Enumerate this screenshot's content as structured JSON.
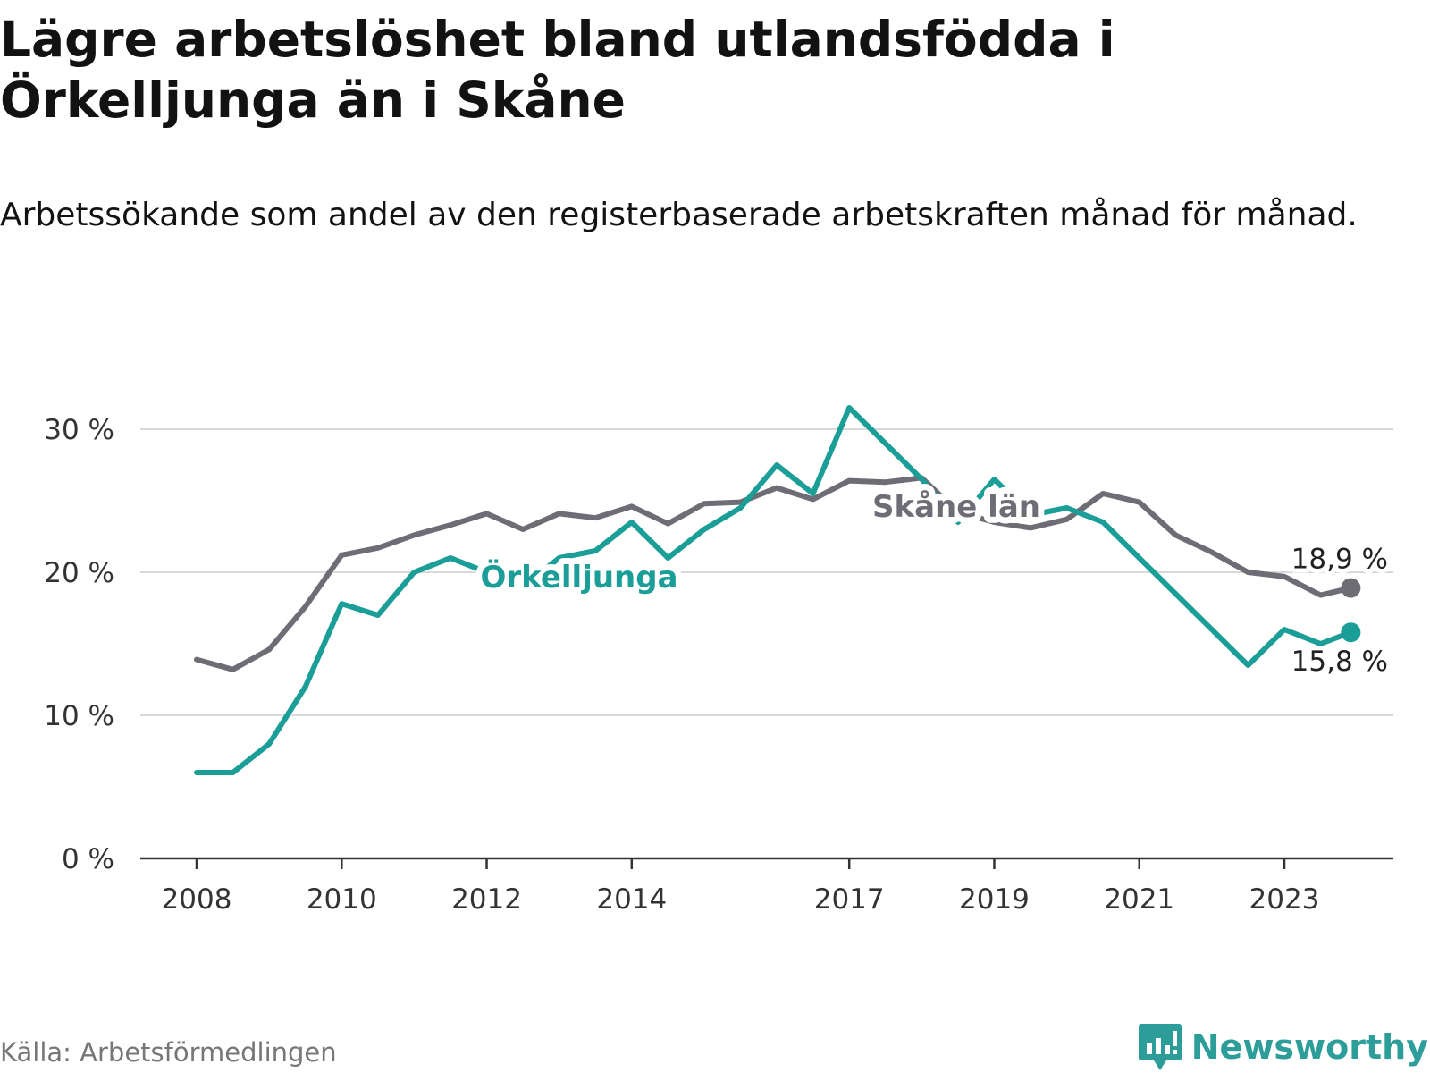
{
  "title": "Lägre arbetslöshet bland utlandsfödda i Örkelljunga än i Skåne",
  "subtitle": "Arbetssökande som andel av den registerbaserade arbetskraften månad för månad.",
  "source": "Källa: Arbetsförmedlingen",
  "brand": "Newsworthy",
  "colors": {
    "orkelljunga": "#1a9e97",
    "skane": "#6e6c75",
    "grid": "#d9d9d9",
    "axis": "#333333"
  },
  "chart_data": {
    "type": "line",
    "title": "Lägre arbetslöshet bland utlandsfödda i Örkelljunga än i Skåne",
    "subtitle": "Arbetssökande som andel av den registerbaserade arbetskraften månad för månad.",
    "xlabel": "",
    "ylabel": "",
    "ylim": [
      0,
      30
    ],
    "xlim": [
      "2007-06",
      "2024-12"
    ],
    "y_ticks": [
      0,
      10,
      20,
      30
    ],
    "y_tick_labels": [
      "0 %",
      "10 %",
      "20 %",
      "30 %"
    ],
    "x_ticks": [
      "2008-01",
      "2010-01",
      "2012-01",
      "2014-01",
      "2017-01",
      "2019-01",
      "2021-01",
      "2023-01"
    ],
    "x_tick_labels": [
      "2008",
      "2010",
      "2012",
      "2014",
      "2017",
      "2019",
      "2021",
      "2023"
    ],
    "grid": "horizontal",
    "legend": "inline labels",
    "series": [
      {
        "name": "Skåne län",
        "color": "#6e6c75",
        "end_label": "18,9 %",
        "x": [
          "2008-01",
          "2008-07",
          "2009-01",
          "2009-07",
          "2010-01",
          "2010-07",
          "2011-01",
          "2011-07",
          "2012-01",
          "2012-07",
          "2013-01",
          "2013-07",
          "2014-01",
          "2014-07",
          "2015-01",
          "2015-07",
          "2016-01",
          "2016-07",
          "2017-01",
          "2017-07",
          "2018-01",
          "2018-07",
          "2019-01",
          "2019-07",
          "2020-01",
          "2020-07",
          "2021-01",
          "2021-07",
          "2022-01",
          "2022-07",
          "2023-01",
          "2023-07",
          "2023-12"
        ],
        "values": [
          13.9,
          13.2,
          14.6,
          17.6,
          21.2,
          21.7,
          22.6,
          23.3,
          24.1,
          23.0,
          24.1,
          23.8,
          24.6,
          23.4,
          24.8,
          24.9,
          25.9,
          25.1,
          26.4,
          26.3,
          26.6,
          24.2,
          23.5,
          23.1,
          23.7,
          25.5,
          24.9,
          22.6,
          21.4,
          20.0,
          19.7,
          18.4,
          18.9
        ]
      },
      {
        "name": "Örkelljunga",
        "color": "#1a9e97",
        "end_label": "15,8 %",
        "x": [
          "2008-01",
          "2008-07",
          "2009-01",
          "2009-07",
          "2010-01",
          "2010-07",
          "2011-01",
          "2011-07",
          "2012-01",
          "2012-07",
          "2013-01",
          "2013-07",
          "2014-01",
          "2014-07",
          "2015-01",
          "2015-07",
          "2016-01",
          "2016-07",
          "2017-01",
          "2017-07",
          "2018-01",
          "2018-07",
          "2019-01",
          "2019-07",
          "2020-01",
          "2020-07",
          "2021-01",
          "2021-07",
          "2022-01",
          "2022-07",
          "2023-01",
          "2023-07",
          "2023-12"
        ],
        "values": [
          6.0,
          6.0,
          8.0,
          12.0,
          17.8,
          17.0,
          20.0,
          21.0,
          20.0,
          19.0,
          21.0,
          21.5,
          23.5,
          21.0,
          23.0,
          24.5,
          27.5,
          25.5,
          31.5,
          29.0,
          26.5,
          23.5,
          26.5,
          24.0,
          24.5,
          23.5,
          21.0,
          18.5,
          16.0,
          13.5,
          16.0,
          15.0,
          15.8
        ]
      }
    ]
  }
}
